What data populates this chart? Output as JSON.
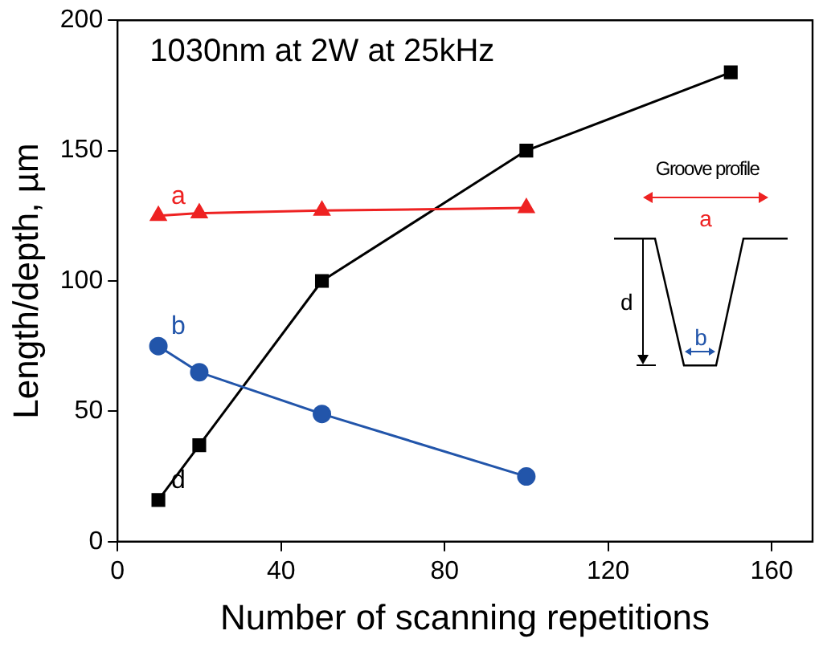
{
  "chart_data": {
    "type": "line",
    "title": "1030nm at 2W at 25kHz",
    "xlabel": "Number of scanning repetitions",
    "ylabel": "Length/depth, µm",
    "series": [
      {
        "name": "a",
        "color": "#ee2222",
        "marker": "triangle",
        "x": [
          10,
          20,
          50,
          100
        ],
        "values": [
          125,
          126,
          127,
          128
        ]
      },
      {
        "name": "b",
        "color": "#2255aa",
        "marker": "circle",
        "x": [
          10,
          20,
          50,
          100
        ],
        "values": [
          75,
          65,
          49,
          25
        ]
      },
      {
        "name": "d",
        "color": "#000000",
        "marker": "square",
        "x": [
          10,
          20,
          50,
          100,
          150
        ],
        "values": [
          16,
          37,
          100,
          150,
          180
        ]
      }
    ],
    "xlim": [
      0,
      170
    ],
    "xticks": [
      0,
      40,
      80,
      120,
      160
    ],
    "ylim": [
      0,
      200
    ],
    "yticks": [
      0,
      50,
      100,
      150,
      200
    ],
    "grid": false,
    "legend": false,
    "line_style": "solid",
    "annotations": [
      "Groove profile",
      "a",
      "b",
      "d"
    ]
  }
}
